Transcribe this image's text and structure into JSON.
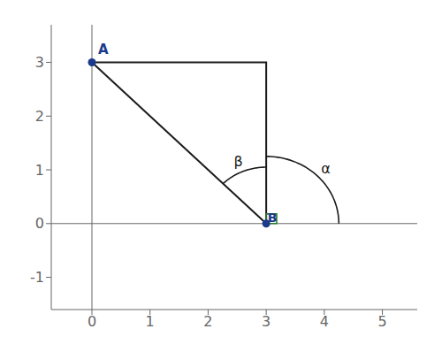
{
  "chart_data": {
    "type": "line",
    "xlim": [
      -0.7,
      5.6
    ],
    "ylim": [
      -1.6,
      3.7
    ],
    "xticks": [
      0,
      1,
      2,
      3,
      4,
      5
    ],
    "yticks": [
      -1,
      0,
      1,
      2,
      3
    ],
    "grid": false,
    "series": [
      {
        "type": "line",
        "color": "#1a1a1a",
        "x": [
          0,
          3,
          3
        ],
        "values": [
          3,
          3,
          0
        ]
      },
      {
        "type": "line",
        "color": "#1a1a1a",
        "x": [
          0,
          3
        ],
        "values": [
          3,
          0
        ]
      },
      {
        "type": "scatter",
        "color": "#1c3a8c",
        "x": [
          0,
          3
        ],
        "values": [
          3,
          0
        ],
        "labels": [
          "A",
          "B"
        ]
      }
    ],
    "arcs": [
      {
        "x": 3,
        "y": 0,
        "radius": 1.05,
        "start": 90,
        "end": 135,
        "label": "β",
        "color": "#1a1a1a"
      },
      {
        "x": 3,
        "y": 0,
        "radius": 1.25,
        "start": 0,
        "end": 90,
        "label": "α",
        "color": "#1a1a1a"
      }
    ],
    "right_angle_marks": [
      {
        "x": 3,
        "y": 0,
        "size": 0.18,
        "color": "#2a7a2a"
      }
    ]
  }
}
